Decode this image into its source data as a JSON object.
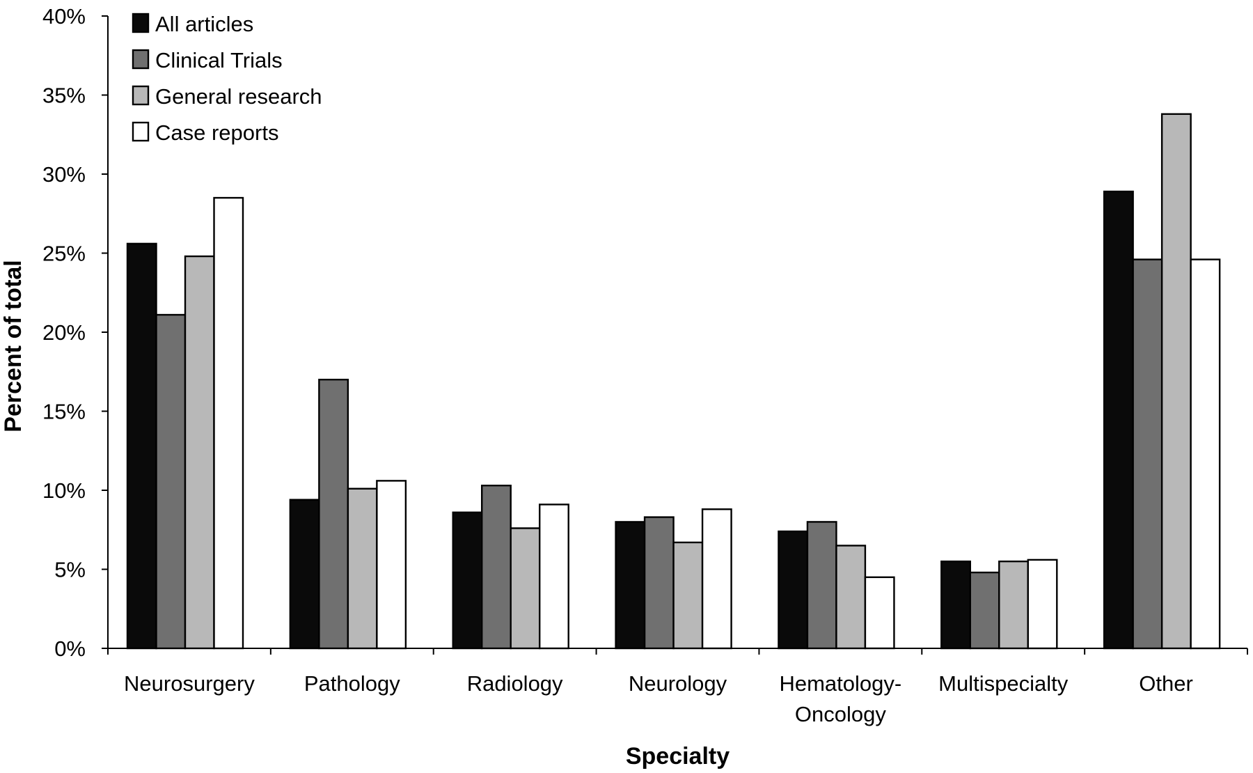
{
  "chart_data": {
    "type": "bar",
    "title": "",
    "xlabel": "Specialty",
    "ylabel": "Percent of total",
    "ylim": [
      0,
      40
    ],
    "ytick_values": [
      0,
      5,
      10,
      15,
      20,
      25,
      30,
      35,
      40
    ],
    "ytick_labels": [
      "0%",
      "5%",
      "10%",
      "15%",
      "20%",
      "25%",
      "30%",
      "35%",
      "40%"
    ],
    "grid": false,
    "legend_position": "top-left",
    "categories": [
      [
        "Neurosurgery"
      ],
      [
        "Pathology"
      ],
      [
        "Radiology"
      ],
      [
        "Neurology"
      ],
      [
        "Hematology-",
        "Oncology"
      ],
      [
        "Multispecialty"
      ],
      [
        "Other"
      ]
    ],
    "series": [
      {
        "name": "All articles",
        "color": "#0a0a0a",
        "values": [
          25.6,
          9.4,
          8.6,
          8.0,
          7.4,
          5.5,
          28.9
        ]
      },
      {
        "name": "Clinical Trials",
        "color": "#707070",
        "values": [
          21.1,
          17.0,
          10.3,
          8.3,
          8.0,
          4.8,
          24.6
        ]
      },
      {
        "name": "General research",
        "color": "#b8b8b8",
        "values": [
          24.8,
          10.1,
          7.6,
          6.7,
          6.5,
          5.5,
          33.8
        ]
      },
      {
        "name": "Case reports",
        "color": "#ffffff",
        "values": [
          28.5,
          10.6,
          9.1,
          8.8,
          4.5,
          5.6,
          24.6
        ]
      }
    ]
  }
}
